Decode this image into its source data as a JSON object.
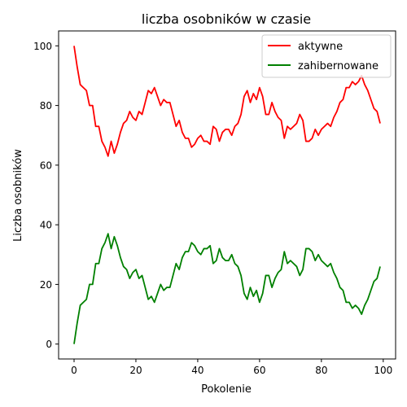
{
  "chart_data": {
    "type": "line",
    "title": "liczba osobników w czasie",
    "xlabel": "Pokolenie",
    "ylabel": "Liczba osobników",
    "xlim": [
      -5,
      104
    ],
    "ylim": [
      -5,
      105
    ],
    "xticks": [
      0,
      20,
      40,
      60,
      80,
      100
    ],
    "yticks": [
      0,
      20,
      40,
      60,
      80,
      100
    ],
    "grid": false,
    "legend_position": "top-right",
    "x": [
      0,
      1,
      2,
      3,
      4,
      5,
      6,
      7,
      8,
      9,
      10,
      11,
      12,
      13,
      14,
      15,
      16,
      17,
      18,
      19,
      20,
      21,
      22,
      23,
      24,
      25,
      26,
      27,
      28,
      29,
      30,
      31,
      32,
      33,
      34,
      35,
      36,
      37,
      38,
      39,
      40,
      41,
      42,
      43,
      44,
      45,
      46,
      47,
      48,
      49,
      50,
      51,
      52,
      53,
      54,
      55,
      56,
      57,
      58,
      59,
      60,
      61,
      62,
      63,
      64,
      65,
      66,
      67,
      68,
      69,
      70,
      71,
      72,
      73,
      74,
      75,
      76,
      77,
      78,
      79,
      80,
      81,
      82,
      83,
      84,
      85,
      86,
      87,
      88,
      89,
      90,
      91,
      92,
      93,
      94,
      95,
      96,
      97,
      98,
      99
    ],
    "series": [
      {
        "name": "aktywne",
        "color": "#ff0000",
        "values": [
          100,
          93,
          87,
          86,
          85,
          80,
          80,
          73,
          73,
          68,
          66,
          63,
          68,
          64,
          67,
          71,
          74,
          75,
          78,
          76,
          75,
          78,
          77,
          81,
          85,
          84,
          86,
          83,
          80,
          82,
          81,
          81,
          77,
          73,
          75,
          71,
          69,
          69,
          66,
          67,
          69,
          70,
          68,
          68,
          67,
          73,
          72,
          68,
          71,
          72,
          72,
          70,
          73,
          74,
          77,
          83,
          85,
          81,
          84,
          82,
          86,
          83,
          77,
          77,
          81,
          78,
          76,
          75,
          69,
          73,
          72,
          73,
          74,
          77,
          75,
          68,
          68,
          69,
          72,
          70,
          72,
          73,
          74,
          73,
          76,
          78,
          81,
          82,
          86,
          86,
          88,
          87,
          88,
          90,
          87,
          85,
          82,
          79,
          78,
          74
        ]
      },
      {
        "name": "zahibernowane",
        "color": "#008000",
        "values": [
          0,
          7,
          13,
          14,
          15,
          20,
          20,
          27,
          27,
          32,
          34,
          37,
          32,
          36,
          33,
          29,
          26,
          25,
          22,
          24,
          25,
          22,
          23,
          19,
          15,
          16,
          14,
          17,
          20,
          18,
          19,
          19,
          23,
          27,
          25,
          29,
          31,
          31,
          34,
          33,
          31,
          30,
          32,
          32,
          33,
          27,
          28,
          32,
          29,
          28,
          28,
          30,
          27,
          26,
          23,
          17,
          15,
          19,
          16,
          18,
          14,
          17,
          23,
          23,
          19,
          22,
          24,
          25,
          31,
          27,
          28,
          27,
          26,
          23,
          25,
          32,
          32,
          31,
          28,
          30,
          28,
          27,
          26,
          27,
          24,
          22,
          19,
          18,
          14,
          14,
          12,
          13,
          12,
          10,
          13,
          15,
          18,
          21,
          22,
          26
        ]
      }
    ]
  }
}
